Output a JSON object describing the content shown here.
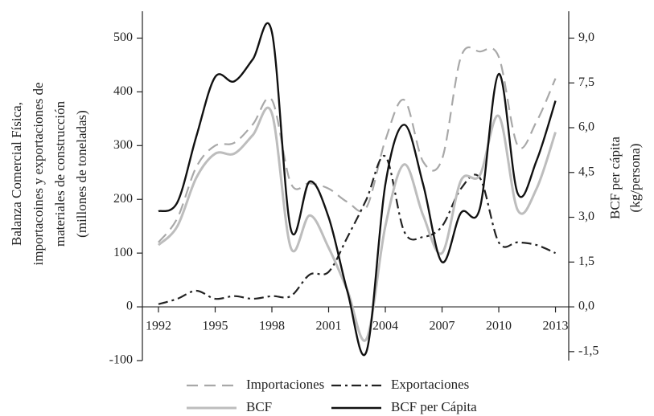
{
  "chart_data": {
    "type": "line",
    "ylabel": [
      "Balanza Comercial Física,",
      "importacoines y exportaciones de",
      "materiales de construcción",
      "(millones de toneladas)"
    ],
    "y2label": [
      "BCF per cápita",
      "(kg/persona)"
    ],
    "x": [
      1992,
      1993,
      1994,
      1995,
      1996,
      1997,
      1998,
      1999,
      2000,
      2001,
      2002,
      2003,
      2004,
      2005,
      2006,
      2007,
      2008,
      2009,
      2010,
      2011,
      2012,
      2013
    ],
    "xlim": [
      1991.15,
      2013.7
    ],
    "xticks": [
      1992,
      1995,
      1998,
      2001,
      2004,
      2007,
      2010,
      2013
    ],
    "ylim": [
      -100,
      550
    ],
    "yticks": [
      -100,
      0,
      100,
      200,
      300,
      400,
      500
    ],
    "y2lim": [
      -1.8,
      9.9
    ],
    "y2ticks": [
      {
        "value": -1.5,
        "label": "-1,5"
      },
      {
        "value": 0,
        "label": "0,0"
      },
      {
        "value": 1.5,
        "label": "1,5"
      },
      {
        "value": 3,
        "label": "3,0"
      },
      {
        "value": 4.5,
        "label": "4,5"
      },
      {
        "value": 6,
        "label": "6,0"
      },
      {
        "value": 7.5,
        "label": "7,5"
      },
      {
        "value": 9,
        "label": "9,0"
      }
    ],
    "legend": "bottom",
    "series": [
      {
        "name": "Importaciones",
        "color": "#a8a8a8",
        "style": "dashed",
        "values": [
          120,
          165,
          260,
          300,
          305,
          340,
          385,
          230,
          230,
          220,
          195,
          185,
          310,
          385,
          270,
          275,
          465,
          475,
          465,
          300,
          345,
          425
        ]
      },
      {
        "name": "Exportaciones",
        "color": "#222222",
        "style": "dashdot",
        "values": [
          5,
          15,
          30,
          15,
          20,
          15,
          20,
          20,
          60,
          65,
          130,
          200,
          280,
          140,
          130,
          150,
          220,
          240,
          120,
          120,
          115,
          100
        ]
      },
      {
        "name": "BCF",
        "color": "#bdbdbd",
        "style": "solid",
        "values": [
          115,
          150,
          240,
          285,
          285,
          320,
          360,
          110,
          170,
          110,
          30,
          -60,
          150,
          265,
          170,
          100,
          235,
          245,
          355,
          180,
          220,
          325
        ]
      },
      {
        "name": "BCF per Cápita",
        "color": "#111111",
        "style": "solid",
        "axis": "y2",
        "values": [
          3.2,
          3.5,
          5.7,
          7.7,
          7.55,
          8.3,
          9.2,
          2.6,
          4.2,
          3.0,
          0.5,
          -1.5,
          4.1,
          6.1,
          4.1,
          1.5,
          3.15,
          3.3,
          7.8,
          3.8,
          4.9,
          6.9
        ]
      }
    ]
  }
}
